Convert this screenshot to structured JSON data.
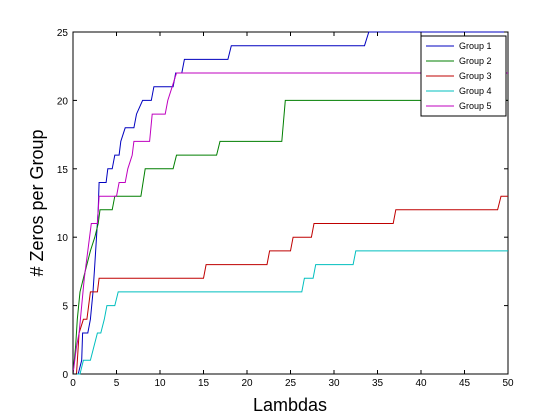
{
  "chart_data": {
    "type": "line",
    "title": "",
    "xlabel": "Lambdas",
    "ylabel": "# Zeros per Group",
    "xlim": [
      0,
      50
    ],
    "ylim": [
      0,
      25
    ],
    "xticks": [
      0,
      5,
      10,
      15,
      20,
      25,
      30,
      35,
      40,
      45,
      50
    ],
    "yticks": [
      0,
      5,
      10,
      15,
      20,
      25
    ],
    "grid": false,
    "legend_position": "top-right",
    "series": [
      {
        "name": "Group 1",
        "color": "#0000bf",
        "points": [
          [
            0,
            0
          ],
          [
            0.6,
            0
          ],
          [
            1,
            1
          ],
          [
            1.1,
            3
          ],
          [
            1.7,
            3
          ],
          [
            2,
            4
          ],
          [
            2.3,
            6
          ],
          [
            2.5,
            8
          ],
          [
            2.7,
            10
          ],
          [
            2.9,
            12
          ],
          [
            3,
            14
          ],
          [
            3.8,
            14
          ],
          [
            4,
            15
          ],
          [
            4.5,
            15
          ],
          [
            4.8,
            16
          ],
          [
            5.3,
            16
          ],
          [
            5.5,
            17
          ],
          [
            6,
            18
          ],
          [
            7,
            18
          ],
          [
            7.3,
            19
          ],
          [
            8,
            20
          ],
          [
            9,
            20
          ],
          [
            9.3,
            21
          ],
          [
            11.5,
            21
          ],
          [
            11.8,
            22
          ],
          [
            12.5,
            22
          ],
          [
            12.8,
            23
          ],
          [
            17.8,
            23
          ],
          [
            18.2,
            24
          ],
          [
            33.5,
            24
          ],
          [
            34,
            25
          ],
          [
            50,
            25
          ]
        ]
      },
      {
        "name": "Group 2",
        "color": "#007f00",
        "points": [
          [
            0,
            0
          ],
          [
            0.3,
            2
          ],
          [
            0.5,
            4
          ],
          [
            0.8,
            6
          ],
          [
            1.2,
            7
          ],
          [
            1.6,
            8
          ],
          [
            2,
            9
          ],
          [
            2.5,
            10
          ],
          [
            2.9,
            11
          ],
          [
            3.1,
            12
          ],
          [
            4.5,
            12
          ],
          [
            4.8,
            13
          ],
          [
            7.8,
            13
          ],
          [
            8.3,
            15
          ],
          [
            11.5,
            15
          ],
          [
            11.9,
            16
          ],
          [
            16.5,
            16
          ],
          [
            16.9,
            17
          ],
          [
            24,
            17
          ],
          [
            24.4,
            20
          ],
          [
            50,
            20
          ]
        ]
      },
      {
        "name": "Group 3",
        "color": "#bf0000",
        "points": [
          [
            0,
            0
          ],
          [
            0.4,
            0
          ],
          [
            0.7,
            3
          ],
          [
            1.2,
            4
          ],
          [
            1.6,
            4
          ],
          [
            2,
            6
          ],
          [
            2.8,
            6
          ],
          [
            3,
            7
          ],
          [
            15,
            7
          ],
          [
            15.3,
            8
          ],
          [
            22.3,
            8
          ],
          [
            22.6,
            9
          ],
          [
            25,
            9
          ],
          [
            25.3,
            10
          ],
          [
            27.4,
            10
          ],
          [
            27.7,
            11
          ],
          [
            36.8,
            11
          ],
          [
            37.1,
            12
          ],
          [
            48.8,
            12
          ],
          [
            49.2,
            13
          ],
          [
            50,
            13
          ]
        ]
      },
      {
        "name": "Group 4",
        "color": "#00bfbf",
        "points": [
          [
            0,
            0
          ],
          [
            0.8,
            0
          ],
          [
            1.2,
            1
          ],
          [
            2,
            1
          ],
          [
            2.4,
            2
          ],
          [
            2.8,
            3
          ],
          [
            3.2,
            3
          ],
          [
            3.6,
            4
          ],
          [
            3.9,
            5
          ],
          [
            4.8,
            5
          ],
          [
            5.2,
            6
          ],
          [
            26.3,
            6
          ],
          [
            26.6,
            7
          ],
          [
            27.6,
            7
          ],
          [
            27.9,
            8
          ],
          [
            32.2,
            8
          ],
          [
            32.5,
            9
          ],
          [
            50,
            9
          ]
        ]
      },
      {
        "name": "Group 5",
        "color": "#bf00bf",
        "points": [
          [
            0,
            0
          ],
          [
            0.4,
            2
          ],
          [
            0.7,
            3
          ],
          [
            1,
            5
          ],
          [
            1.3,
            7
          ],
          [
            1.7,
            9
          ],
          [
            2.1,
            11
          ],
          [
            2.8,
            11
          ],
          [
            3,
            13
          ],
          [
            5,
            13
          ],
          [
            5.3,
            14
          ],
          [
            6,
            14
          ],
          [
            6.3,
            15
          ],
          [
            6.8,
            16
          ],
          [
            7,
            17
          ],
          [
            8.8,
            17
          ],
          [
            9.1,
            19
          ],
          [
            10.6,
            19
          ],
          [
            10.9,
            20
          ],
          [
            11.4,
            21
          ],
          [
            11.9,
            22
          ],
          [
            50,
            22
          ]
        ]
      }
    ]
  }
}
